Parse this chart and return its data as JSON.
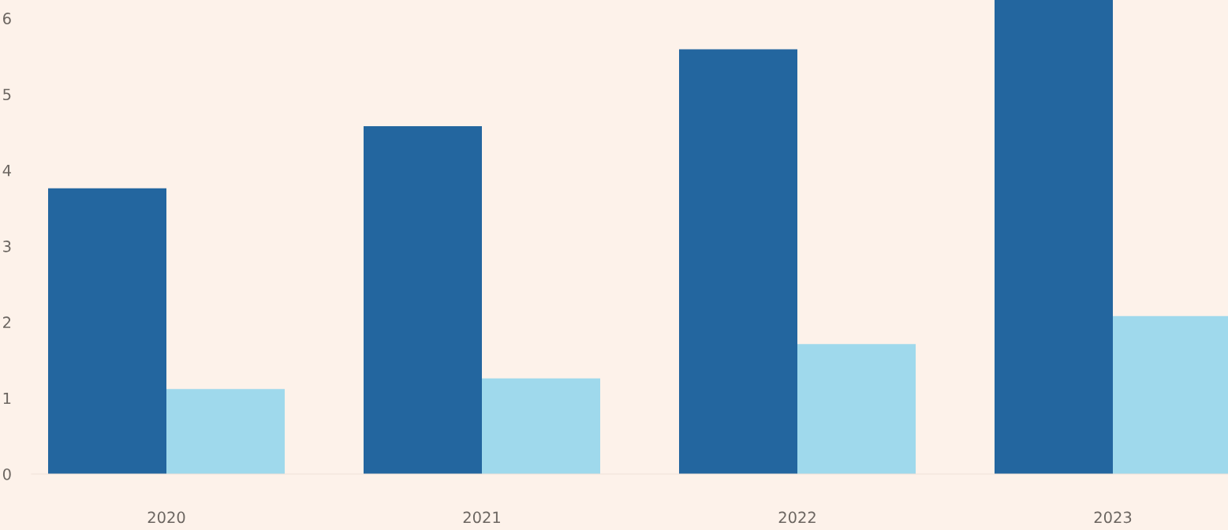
{
  "chart_data": {
    "type": "bar",
    "categories": [
      "2020",
      "2021",
      "2022",
      "2023"
    ],
    "series": [
      {
        "color": "#23669f",
        "values": [
          3.76,
          4.58,
          5.59,
          6.24
        ]
      },
      {
        "color": "#9fd9ec",
        "values": [
          1.12,
          1.26,
          1.71,
          2.08
        ]
      }
    ],
    "ylim": [
      0,
      6.24
    ],
    "yticks": [
      0,
      1,
      2,
      3,
      4,
      5,
      6
    ],
    "grid": false
  }
}
